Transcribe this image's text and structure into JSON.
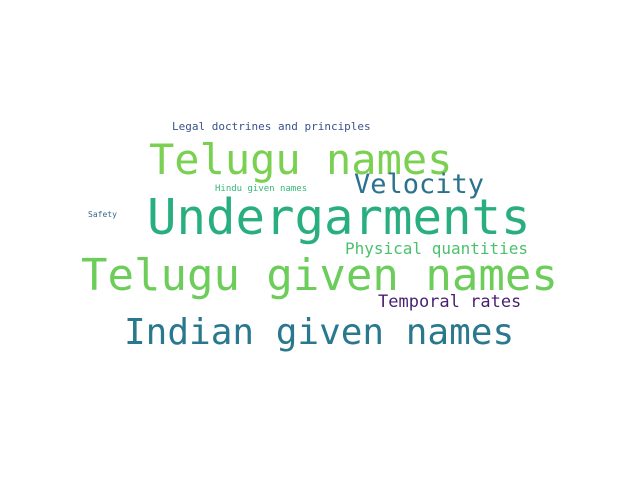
{
  "wordcloud": {
    "words": [
      {
        "text": "Legal doctrines and principles",
        "color": "#3b528b"
      },
      {
        "text": "Telugu names",
        "color": "#7ad151"
      },
      {
        "text": "Velocity",
        "color": "#2c728e"
      },
      {
        "text": "Hindu given names",
        "color": "#35b779"
      },
      {
        "text": "Safety",
        "color": "#31688e"
      },
      {
        "text": "Undergarments",
        "color": "#29af7f"
      },
      {
        "text": "Physical quantities",
        "color": "#4ac16d"
      },
      {
        "text": "Telugu given names",
        "color": "#6ccd5a"
      },
      {
        "text": "Temporal rates",
        "color": "#481f70"
      },
      {
        "text": "Indian given names",
        "color": "#2a788e"
      }
    ]
  }
}
